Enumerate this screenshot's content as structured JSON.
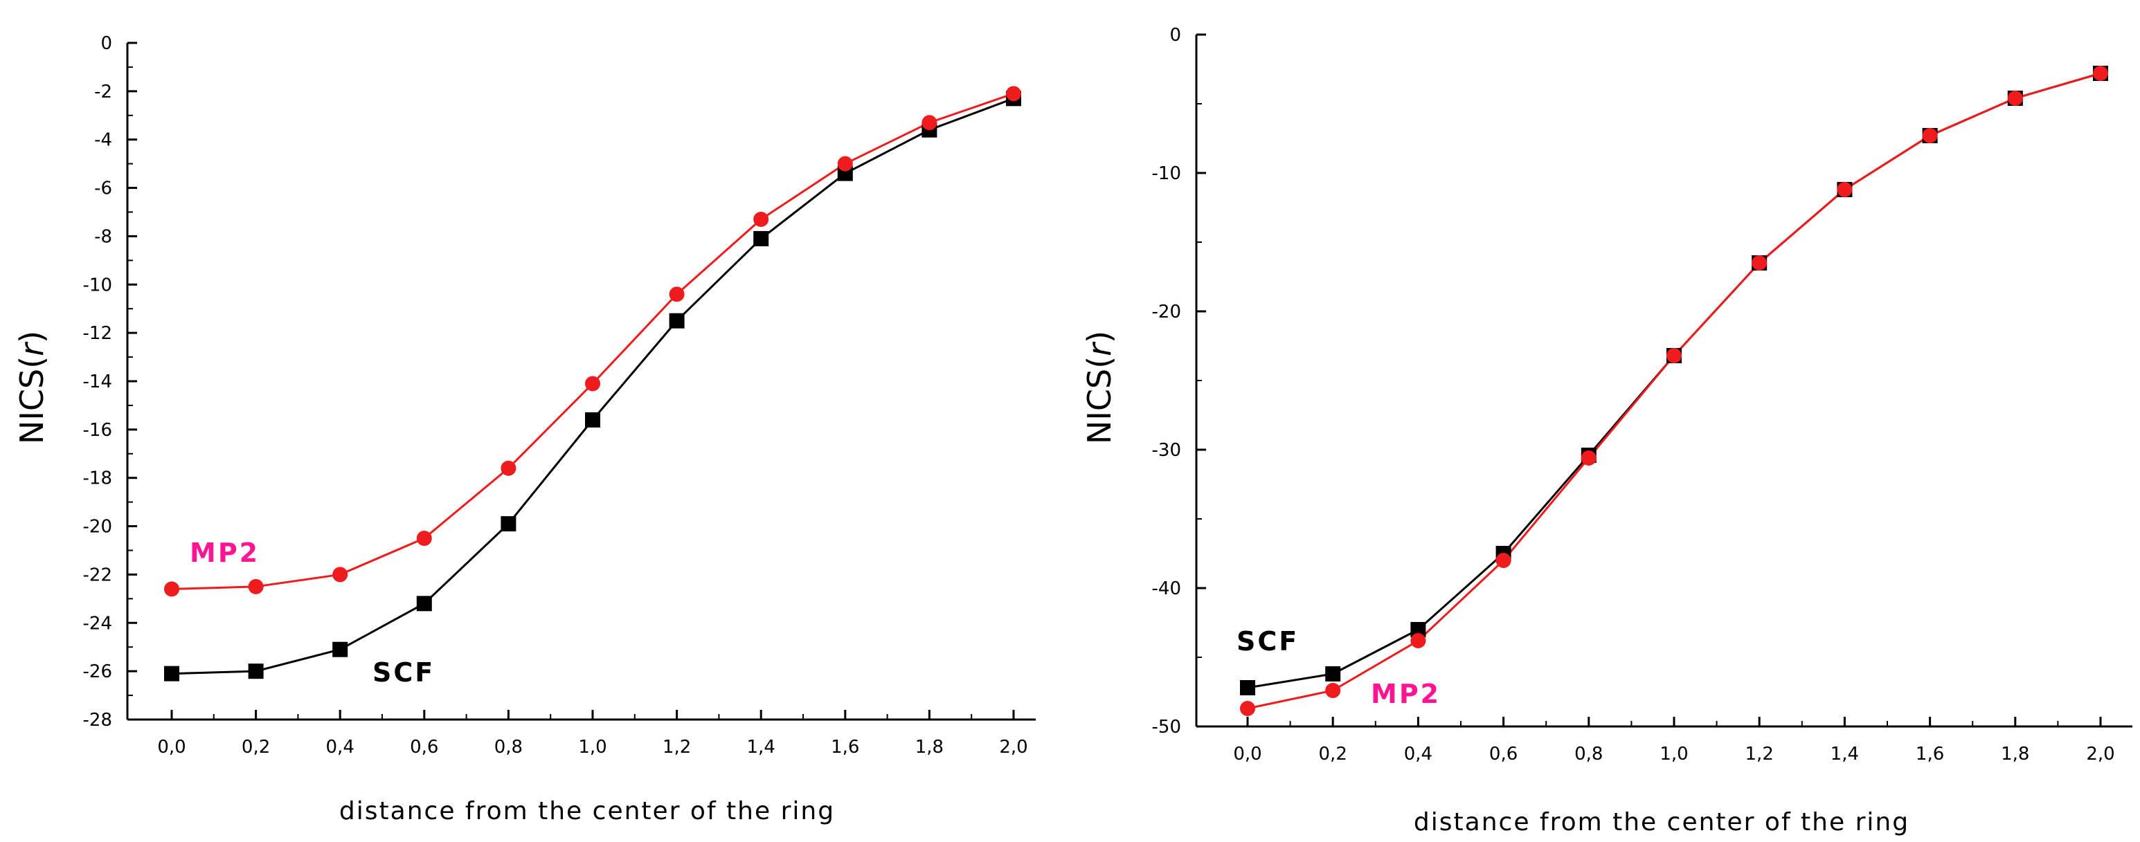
{
  "colors": {
    "scf": "#000000",
    "mp2": "#ee1c1c",
    "mp2_label": "#ff1493"
  },
  "chart_data": [
    {
      "type": "line",
      "xlabel": "distance from the center of the ring",
      "ylabel_main": "NICS(",
      "ylabel_italic": "r",
      "ylabel_close": ")",
      "xlim": [
        0.0,
        2.0
      ],
      "ylim": [
        -28,
        0
      ],
      "xticks": [
        "0,0",
        "0,2",
        "0,4",
        "0,6",
        "0,8",
        "1,0",
        "1,2",
        "1,4",
        "1,6",
        "1,8",
        "2,0"
      ],
      "yticks": [
        "0",
        "-2",
        "-4",
        "-6",
        "-8",
        "-10",
        "-12",
        "-14",
        "-16",
        "-18",
        "-20",
        "-22",
        "-24",
        "-26",
        "-28"
      ],
      "x": [
        0.0,
        0.2,
        0.4,
        0.6,
        0.8,
        1.0,
        1.2,
        1.4,
        1.6,
        1.8,
        2.0
      ],
      "series": [
        {
          "name": "SCF",
          "marker": "square",
          "values": [
            -26.1,
            -26.0,
            -25.1,
            -23.2,
            -19.9,
            -15.6,
            -11.5,
            -8.1,
            -5.4,
            -3.6,
            -2.3
          ]
        },
        {
          "name": "MP2",
          "marker": "circle",
          "values": [
            -22.6,
            -22.5,
            -22.0,
            -20.5,
            -17.6,
            -14.1,
            -10.4,
            -7.3,
            -5.0,
            -3.3,
            -2.1
          ]
        }
      ]
    },
    {
      "type": "line",
      "xlabel": "distance from the center of the ring",
      "ylabel_main": "NICS(",
      "ylabel_italic": "r",
      "ylabel_close": ")",
      "xlim": [
        0.0,
        2.0
      ],
      "ylim": [
        -50,
        0
      ],
      "xticks": [
        "0,0",
        "0,2",
        "0,4",
        "0,6",
        "0,8",
        "1,0",
        "1,2",
        "1,4",
        "1,6",
        "1,8",
        "2,0"
      ],
      "yticks": [
        "0",
        "-10",
        "-20",
        "-30",
        "-40",
        "-50"
      ],
      "x": [
        0.0,
        0.2,
        0.4,
        0.6,
        0.8,
        1.0,
        1.2,
        1.4,
        1.6,
        1.8,
        2.0
      ],
      "series": [
        {
          "name": "SCF",
          "marker": "square",
          "values": [
            -47.2,
            -46.2,
            -43.0,
            -37.5,
            -30.4,
            -23.2,
            -16.5,
            -11.2,
            -7.3,
            -4.6,
            -2.8
          ]
        },
        {
          "name": "MP2",
          "marker": "circle",
          "values": [
            -48.7,
            -47.4,
            -43.8,
            -38.0,
            -30.6,
            -23.2,
            -16.5,
            -11.2,
            -7.3,
            -4.6,
            -2.8
          ]
        }
      ]
    }
  ]
}
